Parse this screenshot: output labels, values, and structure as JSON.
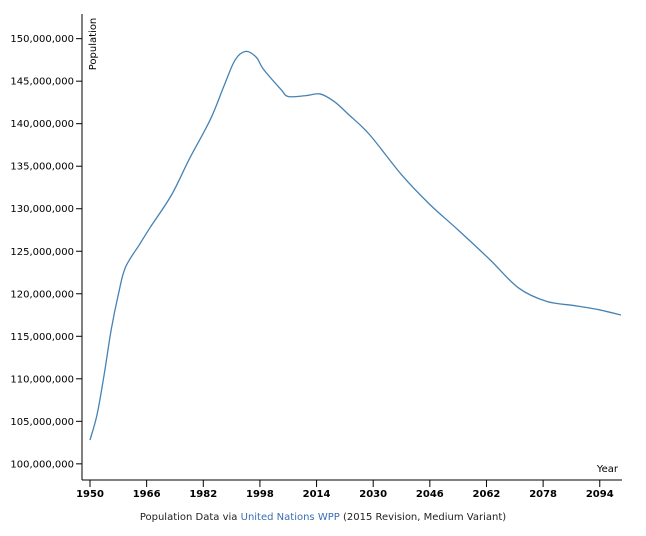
{
  "chart_data": {
    "type": "line",
    "y_label": "Population",
    "x_label": "Year",
    "footer": {
      "prefix": "Population Data via",
      "link": "United Nations WPP",
      "suffix": "(2015 Revision, Medium Variant)"
    },
    "x": [
      1950,
      1952,
      1954,
      1956,
      1958,
      1960,
      1964,
      1967,
      1973,
      1978,
      1984,
      1988,
      1991,
      1994,
      1997,
      1999,
      2004,
      2006,
      2011,
      2015,
      2019,
      2023,
      2029,
      2038,
      2046,
      2054,
      2063,
      2071,
      2079,
      2087,
      2094,
      2100
    ],
    "series": [
      {
        "color": "#4682b4",
        "values": [
          102800000,
          105800000,
          110500000,
          115800000,
          119900000,
          123100000,
          125800000,
          127800000,
          131600000,
          135800000,
          140500000,
          144600000,
          147500000,
          148500000,
          147800000,
          146400000,
          144000000,
          143200000,
          143300000,
          143500000,
          142600000,
          141100000,
          138700000,
          134000000,
          130500000,
          127500000,
          124000000,
          120700000,
          119100000,
          118600000,
          118100000,
          117500000
        ]
      }
    ],
    "xlim": [
      1950,
      2100
    ],
    "ylim": [
      98100000,
      152900000
    ],
    "xticks": [
      1950,
      1966,
      1982,
      1998,
      2014,
      2030,
      2046,
      2062,
      2078,
      2094
    ],
    "yticks": [
      {
        "value": 100000000,
        "label": "100,000,000"
      },
      {
        "value": 105000000,
        "label": "105,000,000"
      },
      {
        "value": 110000000,
        "label": "110,000,000"
      },
      {
        "value": 115000000,
        "label": "115,000,000"
      },
      {
        "value": 120000000,
        "label": "120,000,000"
      },
      {
        "value": 125000000,
        "label": "125,000,000"
      },
      {
        "value": 130000000,
        "label": "130,000,000"
      },
      {
        "value": 135000000,
        "label": "135,000,000"
      },
      {
        "value": 140000000,
        "label": "140,000,000"
      },
      {
        "value": 145000000,
        "label": "145,000,000"
      },
      {
        "value": 150000000,
        "label": "150,000,000"
      }
    ],
    "grid": false
  }
}
